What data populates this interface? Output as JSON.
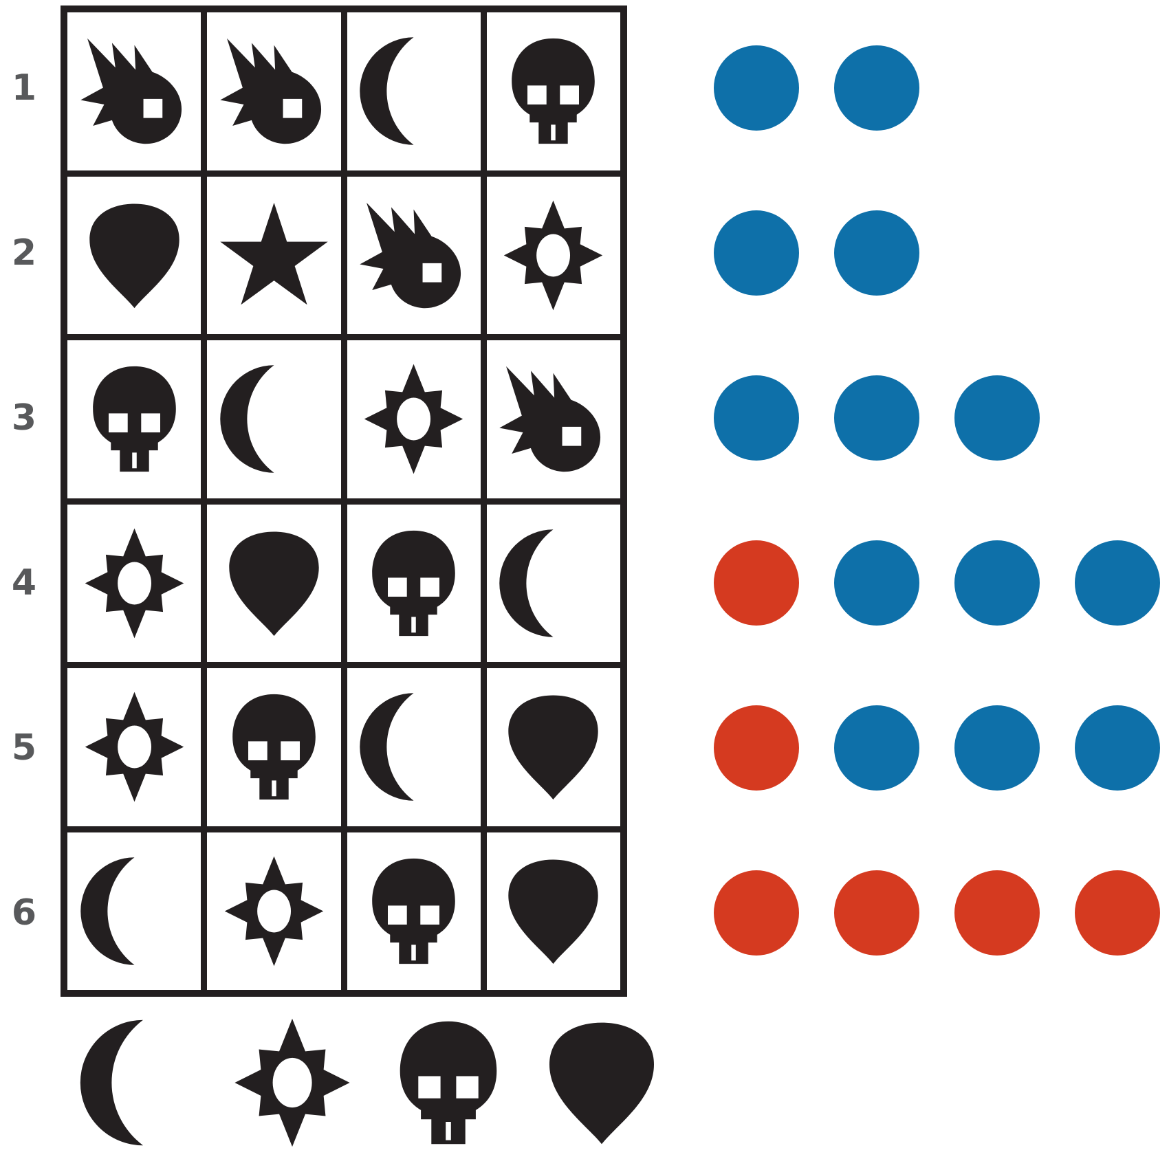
{
  "page": {
    "background": "#ffffff",
    "description": "symbol-deduction puzzle board"
  },
  "palette": {
    "page_background": "#ffffff",
    "icon_color": "#231f20",
    "grid_line_color": "#231f20",
    "row_label_color": "#58595b",
    "feedback_blue": "#0e70a9",
    "feedback_red": "#d53a20"
  },
  "symbols": [
    "comet",
    "moon",
    "skull",
    "pick",
    "star",
    "sun"
  ],
  "board": {
    "columns": 4,
    "rows": [
      {
        "label": "1",
        "guess": [
          "comet",
          "comet",
          "moon",
          "skull"
        ],
        "feedback": [
          "blue",
          "blue"
        ]
      },
      {
        "label": "2",
        "guess": [
          "pick",
          "star",
          "comet",
          "sun"
        ],
        "feedback": [
          "blue",
          "blue"
        ]
      },
      {
        "label": "3",
        "guess": [
          "skull",
          "moon",
          "sun",
          "comet"
        ],
        "feedback": [
          "blue",
          "blue",
          "blue"
        ]
      },
      {
        "label": "4",
        "guess": [
          "sun",
          "pick",
          "skull",
          "moon"
        ],
        "feedback": [
          "red",
          "blue",
          "blue",
          "blue"
        ]
      },
      {
        "label": "5",
        "guess": [
          "sun",
          "skull",
          "moon",
          "pick"
        ],
        "feedback": [
          "red",
          "blue",
          "blue",
          "blue"
        ]
      },
      {
        "label": "6",
        "guess": [
          "moon",
          "sun",
          "skull",
          "pick"
        ],
        "feedback": [
          "red",
          "red",
          "red",
          "red"
        ]
      }
    ]
  },
  "solution_row": {
    "icons": [
      "moon",
      "sun",
      "skull",
      "pick"
    ]
  },
  "legend": {
    "blue_dot_meaning": "feedback-peg-blue",
    "red_dot_meaning": "feedback-peg-red"
  }
}
